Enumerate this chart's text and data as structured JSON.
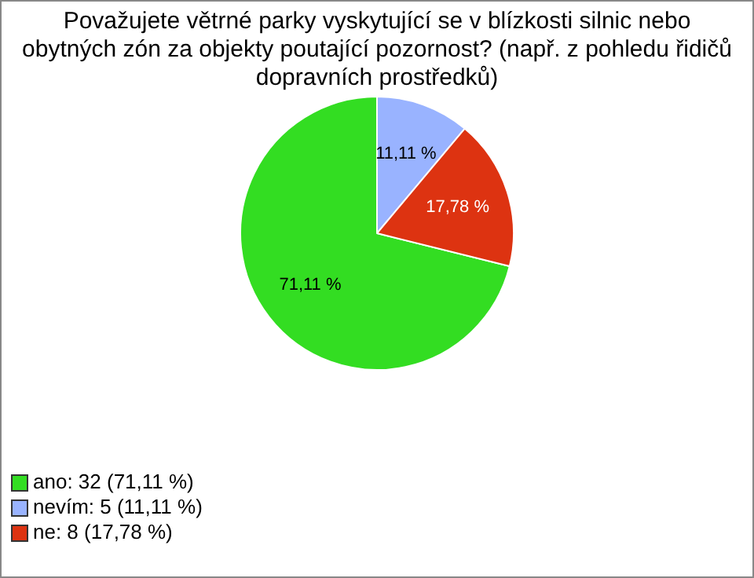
{
  "chart_data": {
    "type": "pie",
    "title": "Považujete větrné parky vyskytující se v blízkosti silnic nebo obytných zón za objekty poutající pozornost? (např. z pohledu řidičů dopravních prostředků)",
    "categories": [
      "ano: 32 (71,11 %)",
      "nevím: 5 (11,11 %)",
      "ne: 8 (17,78 %)"
    ],
    "values": [
      71.11,
      11.11,
      17.78
    ],
    "colors": [
      "#33dd22",
      "#99b3ff",
      "#dd3311"
    ],
    "value_labels": [
      "71,11 %",
      "11,11 %",
      "17,78 %"
    ],
    "legend": "bottom left"
  }
}
